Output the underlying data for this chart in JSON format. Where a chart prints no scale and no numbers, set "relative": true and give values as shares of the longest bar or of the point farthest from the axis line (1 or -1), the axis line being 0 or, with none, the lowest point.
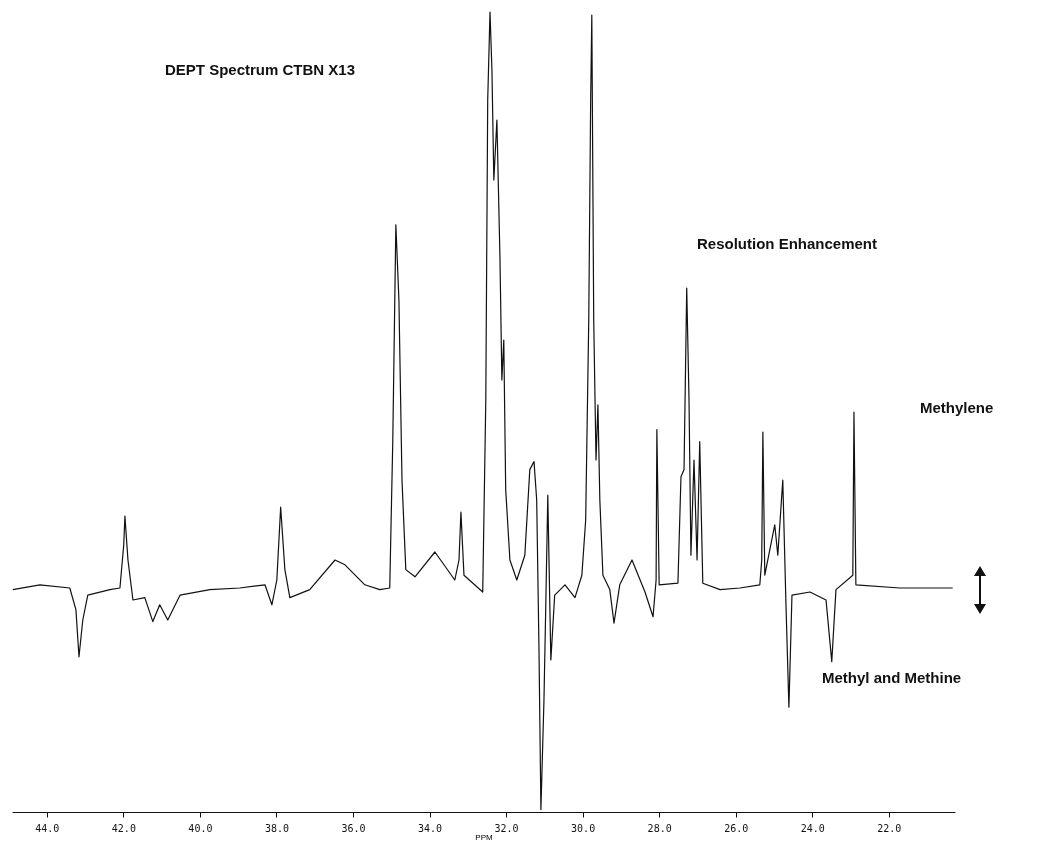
{
  "chart_data": {
    "type": "line",
    "title": "DEPT Spectrum CTBN X13",
    "xlabel": "PPM",
    "relative": true,
    "annotations": [
      "Resolution Enhancement",
      "Methylene",
      "Methyl and Methine"
    ],
    "xlim": [
      44.91,
      20.27
    ],
    "xticks": [
      {
        "value": 44,
        "label": "44.0"
      },
      {
        "value": 42,
        "label": "42.0"
      },
      {
        "value": 40,
        "label": "40.0"
      },
      {
        "value": 38,
        "label": "38.0"
      },
      {
        "value": 36,
        "label": "36.0"
      },
      {
        "value": 34,
        "label": "34.0"
      },
      {
        "value": 32,
        "label": "32.0"
      },
      {
        "value": 30,
        "label": "30.0"
      },
      {
        "value": 28,
        "label": "28.0"
      },
      {
        "value": 26,
        "label": "26.0"
      },
      {
        "value": 24,
        "label": "24.0"
      },
      {
        "value": 22,
        "label": "22.0"
      }
    ],
    "grid": false,
    "series": [
      {
        "color": "#111111",
        "x": [
          44.89,
          44.18,
          43.4,
          43.24,
          43.16,
          43.06,
          42.93,
          42.35,
          42.09,
          41.99,
          41.96,
          41.88,
          41.75,
          41.44,
          41.23,
          41.05,
          40.84,
          40.52,
          39.74,
          38.96,
          38.3,
          38.12,
          37.99,
          37.89,
          37.78,
          37.65,
          37.13,
          36.47,
          36.21,
          35.69,
          35.3,
          35.04,
          34.96,
          34.88,
          34.8,
          34.72,
          34.62,
          34.38,
          33.86,
          33.34,
          33.23,
          33.18,
          33.1,
          32.61,
          32.53,
          32.48,
          32.42,
          32.37,
          32.32,
          32.24,
          32.16,
          32.11,
          32.06,
          32.01,
          31.9,
          31.72,
          31.51,
          31.38,
          31.27,
          31.2,
          31.14,
          31.09,
          31.01,
          30.96,
          30.91,
          30.83,
          30.73,
          30.46,
          30.2,
          30.02,
          29.92,
          29.84,
          29.79,
          29.76,
          29.71,
          29.65,
          29.6,
          29.55,
          29.47,
          29.29,
          29.18,
          29.03,
          28.71,
          28.37,
          28.16,
          28.08,
          28.06,
          28.0,
          27.51,
          27.43,
          27.35,
          27.28,
          27.22,
          27.17,
          27.09,
          27.01,
          26.94,
          26.86,
          26.41,
          25.89,
          25.37,
          25.32,
          25.29,
          25.24,
          24.98,
          24.9,
          24.77,
          24.69,
          24.61,
          24.53,
          24.06,
          23.64,
          23.49,
          23.38,
          22.94,
          22.91,
          22.86,
          21.71,
          20.33
        ],
        "values": [
          0.278,
          0.284,
          0.28,
          0.253,
          0.194,
          0.24,
          0.271,
          0.278,
          0.28,
          0.334,
          0.37,
          0.315,
          0.265,
          0.268,
          0.238,
          0.259,
          0.24,
          0.271,
          0.278,
          0.28,
          0.284,
          0.259,
          0.29,
          0.381,
          0.303,
          0.268,
          0.278,
          0.315,
          0.309,
          0.284,
          0.278,
          0.28,
          0.465,
          0.734,
          0.64,
          0.415,
          0.303,
          0.294,
          0.325,
          0.29,
          0.315,
          0.375,
          0.296,
          0.275,
          0.515,
          0.89,
          1.0,
          0.928,
          0.79,
          0.865,
          0.693,
          0.54,
          0.59,
          0.403,
          0.315,
          0.29,
          0.321,
          0.428,
          0.438,
          0.39,
          0.203,
          0.003,
          0.14,
          0.265,
          0.396,
          0.19,
          0.271,
          0.284,
          0.268,
          0.296,
          0.365,
          0.615,
          0.89,
          0.996,
          0.615,
          0.44,
          0.509,
          0.39,
          0.296,
          0.278,
          0.236,
          0.284,
          0.315,
          0.275,
          0.244,
          0.29,
          0.478,
          0.284,
          0.286,
          0.419,
          0.428,
          0.655,
          0.515,
          0.321,
          0.44,
          0.315,
          0.463,
          0.286,
          0.278,
          0.28,
          0.284,
          0.315,
          0.475,
          0.296,
          0.359,
          0.321,
          0.415,
          0.265,
          0.131,
          0.271,
          0.275,
          0.265,
          0.188,
          0.278,
          0.296,
          0.5,
          0.284,
          0.28,
          0.28
        ]
      }
    ]
  }
}
